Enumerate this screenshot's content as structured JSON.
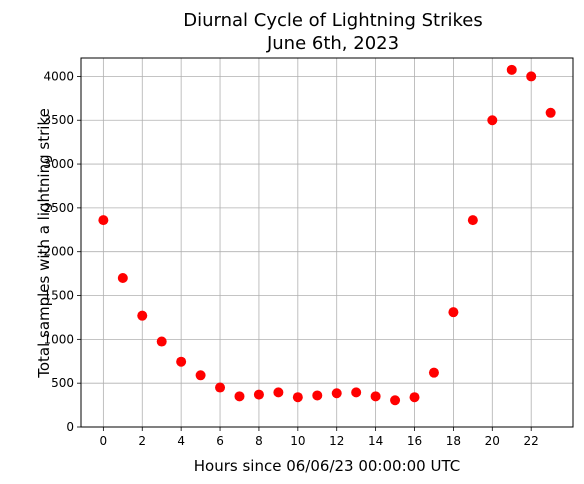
{
  "chart_data": {
    "type": "scatter",
    "title": "Diurnal Cycle of Lightning Strikes",
    "subtitle": "June 6th, 2023",
    "xlabel": "Hours since 06/06/23 00:00:00 UTC",
    "ylabel": "Total samples with a lightning strike",
    "xlim": [
      -1.15,
      24.15
    ],
    "ylim": [
      0,
      4210
    ],
    "xticks": [
      0,
      2,
      4,
      6,
      8,
      10,
      12,
      14,
      16,
      18,
      20,
      22
    ],
    "yticks": [
      0,
      500,
      1000,
      1500,
      2000,
      2500,
      3000,
      3500,
      4000
    ],
    "grid": true,
    "marker_color": "#ff0000",
    "x": [
      0,
      1,
      2,
      3,
      4,
      5,
      6,
      7,
      8,
      9,
      10,
      11,
      12,
      13,
      14,
      15,
      16,
      17,
      18,
      19,
      20,
      21,
      22,
      23
    ],
    "y": [
      2360,
      1700,
      1270,
      975,
      745,
      590,
      450,
      350,
      370,
      395,
      340,
      360,
      385,
      395,
      350,
      305,
      340,
      620,
      1310,
      2360,
      3500,
      4075,
      4000,
      3585
    ]
  }
}
